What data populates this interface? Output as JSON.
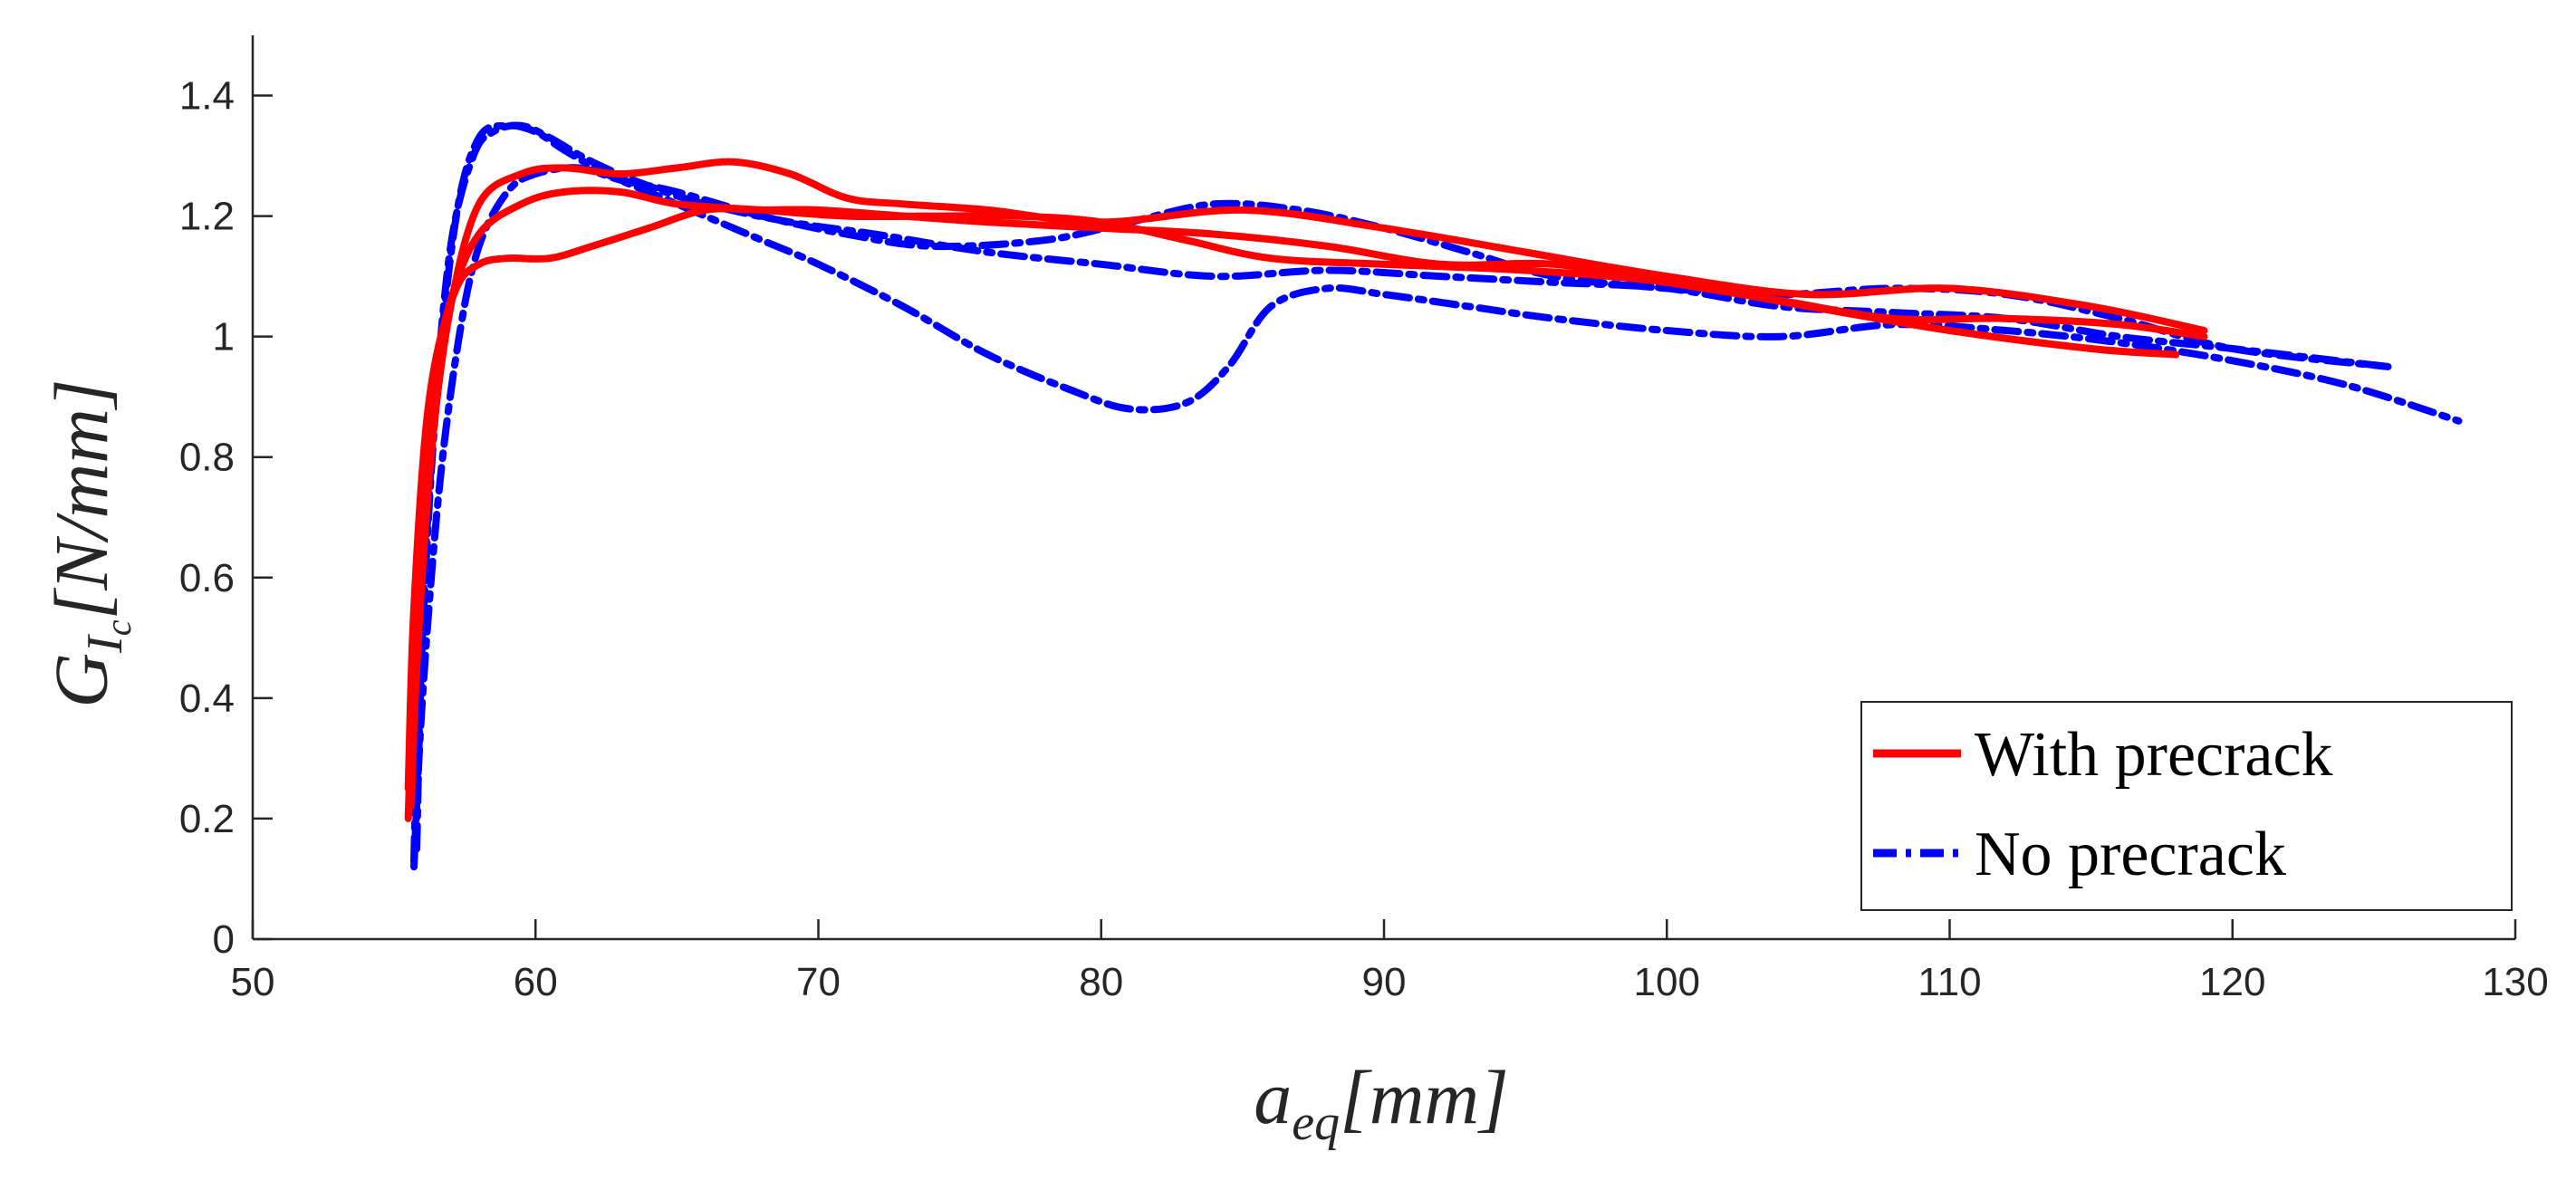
{
  "chart_data": {
    "type": "line",
    "title": "",
    "xlabel": {
      "base": "a",
      "sub": "eq",
      "unit": "[mm]"
    },
    "ylabel": {
      "base": "G",
      "sub": "I",
      "subsub": "c",
      "unit": "[N/mm]"
    },
    "xlim": [
      50,
      130
    ],
    "ylim": [
      0,
      1.5
    ],
    "xticks": [
      50,
      60,
      70,
      80,
      90,
      100,
      110,
      120,
      130
    ],
    "yticks": [
      0,
      0.2,
      0.4,
      0.6,
      0.8,
      1,
      1.2,
      1.4
    ],
    "xtick_labels": [
      "50",
      "60",
      "70",
      "80",
      "90",
      "100",
      "110",
      "120",
      "130"
    ],
    "ytick_labels": [
      "0",
      "0.2",
      "0.4",
      "0.6",
      "0.8",
      "1",
      "1.2",
      "1.4"
    ],
    "grid": false,
    "legend": {
      "location": "bottom-right",
      "entries": [
        {
          "label": "With precrack",
          "style": "solid",
          "color": "#ff0000"
        },
        {
          "label": "No precrack",
          "style": "dash-dot",
          "color": "#0000ff"
        }
      ]
    },
    "series": [
      {
        "name": "With precrack 1",
        "group": "With precrack",
        "style": "solid",
        "color": "#ff0000",
        "x": [
          55.6,
          55.8,
          56.3,
          57.0,
          58.0,
          59.5,
          61.0,
          63.0,
          65.0,
          67.0,
          69.0,
          71.0,
          73.0,
          76.0,
          80.0,
          85.0,
          90.0,
          95.0,
          100.0,
          105.0,
          110.0,
          115.0,
          119.0
        ],
        "y": [
          0.22,
          0.45,
          0.8,
          1.05,
          1.22,
          1.27,
          1.28,
          1.27,
          1.28,
          1.29,
          1.27,
          1.23,
          1.22,
          1.21,
          1.19,
          1.21,
          1.18,
          1.14,
          1.1,
          1.07,
          1.08,
          1.05,
          1.01
        ]
      },
      {
        "name": "With precrack 2",
        "group": "With precrack",
        "style": "solid",
        "color": "#ff0000",
        "x": [
          55.5,
          55.7,
          56.2,
          57.0,
          58.0,
          59.5,
          61.0,
          63.0,
          65.0,
          68.0,
          71.0,
          74.0,
          77.0,
          80.0,
          83.0,
          86.0,
          90.0,
          95.0,
          100.0,
          105.0,
          110.0,
          115.0,
          118.0
        ],
        "y": [
          0.25,
          0.55,
          0.88,
          1.06,
          1.17,
          1.22,
          1.24,
          1.24,
          1.22,
          1.21,
          1.2,
          1.2,
          1.2,
          1.19,
          1.16,
          1.13,
          1.12,
          1.11,
          1.09,
          1.05,
          1.01,
          0.98,
          0.97
        ]
      },
      {
        "name": "With precrack 3",
        "group": "With precrack",
        "style": "solid",
        "color": "#ff0000",
        "x": [
          55.5,
          55.8,
          56.5,
          57.2,
          58.0,
          59.0,
          60.5,
          62.0,
          64.0,
          66.0,
          68.0,
          70.0,
          73.0,
          76.0,
          80.0,
          84.0,
          88.0,
          92.0,
          96.0,
          100.0,
          104.0,
          108.0,
          112.0,
          116.0,
          119.0
        ],
        "y": [
          0.2,
          0.6,
          0.95,
          1.08,
          1.12,
          1.13,
          1.13,
          1.15,
          1.18,
          1.21,
          1.21,
          1.21,
          1.2,
          1.19,
          1.18,
          1.17,
          1.15,
          1.12,
          1.12,
          1.09,
          1.06,
          1.03,
          1.03,
          1.02,
          1.0
        ]
      },
      {
        "name": "No precrack 1",
        "group": "No precrack",
        "style": "dash-dot",
        "color": "#0000ff",
        "x": [
          55.8,
          56.0,
          56.5,
          57.2,
          58.0,
          59.0,
          60.0,
          61.0,
          62.5,
          64.0,
          66.0,
          68.0,
          70.0,
          73.0,
          76.0,
          79.0,
          81.0,
          83.0,
          84.5,
          86.0,
          88.0,
          90.0,
          93.0,
          96.0,
          100.0,
          104.0,
          108.0,
          112.0,
          116.0,
          120.0,
          124.0,
          128.0
        ],
        "y": [
          0.15,
          0.5,
          0.9,
          1.2,
          1.33,
          1.35,
          1.34,
          1.31,
          1.27,
          1.24,
          1.2,
          1.16,
          1.12,
          1.05,
          0.97,
          0.91,
          0.88,
          0.89,
          0.95,
          1.05,
          1.08,
          1.07,
          1.05,
          1.03,
          1.01,
          1.0,
          1.02,
          1.01,
          0.99,
          0.96,
          0.92,
          0.86
        ]
      },
      {
        "name": "No precrack 2",
        "group": "No precrack",
        "style": "dash-dot",
        "color": "#0000ff",
        "x": [
          55.7,
          55.9,
          56.4,
          57.0,
          57.8,
          58.5,
          59.5,
          60.5,
          62.0,
          64.0,
          66.0,
          69.0,
          72.0,
          76.0,
          80.0,
          84.0,
          88.0,
          92.0,
          96.0,
          100.0,
          104.0,
          108.0,
          112.0,
          116.0,
          120.0,
          125.5
        ],
        "y": [
          0.13,
          0.45,
          0.85,
          1.15,
          1.3,
          1.34,
          1.35,
          1.33,
          1.29,
          1.25,
          1.22,
          1.19,
          1.17,
          1.14,
          1.12,
          1.1,
          1.11,
          1.1,
          1.09,
          1.08,
          1.05,
          1.04,
          1.03,
          1.0,
          0.98,
          0.95
        ]
      },
      {
        "name": "No precrack 3",
        "group": "No precrack",
        "style": "dash-dot",
        "color": "#0000ff",
        "x": [
          55.7,
          56.0,
          56.6,
          57.3,
          58.0,
          59.0,
          60.0,
          61.5,
          63.0,
          65.0,
          68.0,
          71.0,
          74.0,
          78.0,
          81.0,
          84.0,
          87.0,
          90.0,
          93.0,
          96.0,
          100.0,
          104.0,
          108.0,
          112.0,
          116.0,
          120.0,
          125.5
        ],
        "y": [
          0.12,
          0.4,
          0.75,
          1.0,
          1.15,
          1.24,
          1.27,
          1.28,
          1.26,
          1.24,
          1.2,
          1.17,
          1.15,
          1.16,
          1.19,
          1.22,
          1.21,
          1.18,
          1.14,
          1.1,
          1.08,
          1.07,
          1.08,
          1.07,
          1.03,
          0.98,
          0.95
        ]
      }
    ]
  }
}
